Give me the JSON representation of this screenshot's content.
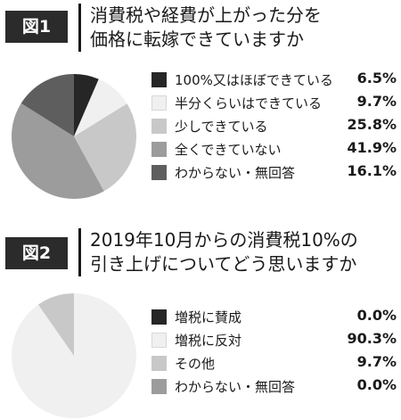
{
  "chart_data": [
    {
      "type": "pie",
      "figure_label": "図1",
      "title_lines": [
        "消費税や経費が上がった分を",
        "価格に転嫁できていますか"
      ],
      "slices": [
        {
          "label": "100%又はほぼできている",
          "value": 6.5,
          "value_label": "6.5%",
          "color": "#262626"
        },
        {
          "label": "半分くらいはできている",
          "value": 9.7,
          "value_label": "9.7%",
          "color": "#f0f0f0"
        },
        {
          "label": "少しできている",
          "value": 25.8,
          "value_label": "25.8%",
          "color": "#c8c8c8"
        },
        {
          "label": "全くできていない",
          "value": 41.9,
          "value_label": "41.9%",
          "color": "#9c9c9c"
        },
        {
          "label": "わからない・無回答",
          "value": 16.1,
          "value_label": "16.1%",
          "color": "#5e5e5e"
        }
      ]
    },
    {
      "type": "pie",
      "figure_label": "図2",
      "title_lines": [
        "2019年10月からの消費税10%の",
        "引き上げについてどう思いますか"
      ],
      "slices": [
        {
          "label": "増税に賛成",
          "value": 0.0,
          "value_label": "0.0%",
          "color": "#262626"
        },
        {
          "label": "増税に反対",
          "value": 90.3,
          "value_label": "90.3%",
          "color": "#f0f0f0"
        },
        {
          "label": "その他",
          "value": 9.7,
          "value_label": "9.7%",
          "color": "#c8c8c8"
        },
        {
          "label": "わからない・無回答",
          "value": 0.0,
          "value_label": "0.0%",
          "color": "#9c9c9c"
        }
      ]
    }
  ]
}
